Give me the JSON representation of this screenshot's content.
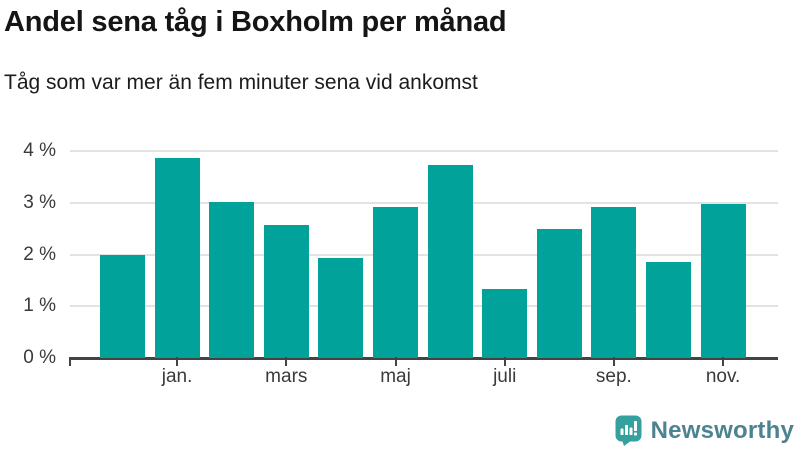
{
  "chart_data": {
    "type": "bar",
    "title": "Andel sena tåg i Boxholm per månad",
    "subtitle": "Tåg som var mer än fem minuter sena vid ankomst",
    "bars": [
      {
        "label": "",
        "value": 2.0
      },
      {
        "label": "jan.",
        "value": 3.87
      },
      {
        "label": "",
        "value": 3.02
      },
      {
        "label": "mars",
        "value": 2.57
      },
      {
        "label": "",
        "value": 1.93
      },
      {
        "label": "maj",
        "value": 2.92
      },
      {
        "label": "",
        "value": 3.73
      },
      {
        "label": "juli",
        "value": 1.33
      },
      {
        "label": "",
        "value": 2.49
      },
      {
        "label": "sep.",
        "value": 2.92
      },
      {
        "label": "",
        "value": 1.85
      },
      {
        "label": "nov.",
        "value": 2.98
      }
    ],
    "y_tick_labels": [
      "0 %",
      "1 %",
      "2 %",
      "3 %",
      "4 %"
    ],
    "ylim": [
      0,
      4
    ],
    "xlabel": "",
    "ylabel": "",
    "grid": "horizontal-only",
    "legend": "none",
    "bar_color": "#00a29a"
  },
  "branding": {
    "logo_text": "Newsworthy",
    "logo_icon": "newsworthy-chart-bubble-icon",
    "icon_color": "#35a09d",
    "text_color": "#4d8390"
  },
  "colors": {
    "background": "#ffffff",
    "bar": "#00a29a",
    "gridline": "#e3e3e3",
    "axis": "#434343",
    "title_text": "#151515",
    "tick_label_text": "#3a3a3a"
  }
}
